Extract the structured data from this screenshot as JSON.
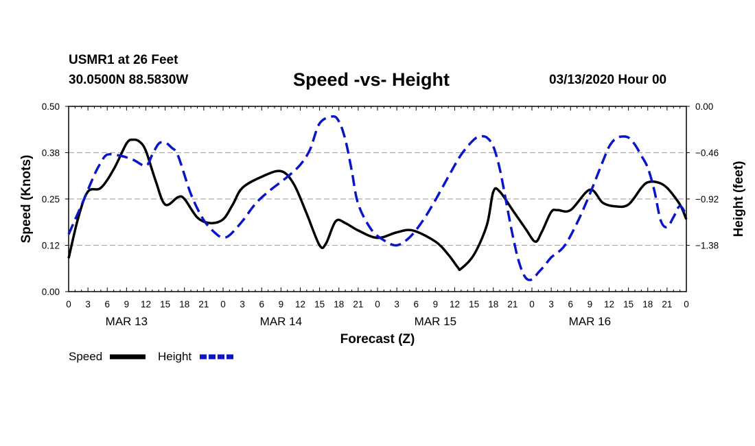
{
  "header": {
    "station": "USMR1 at 26 Feet",
    "coords": "30.0500N 88.5830W",
    "title": "Speed -vs- Height",
    "run": "03/13/2020 Hour 00"
  },
  "colors": {
    "speed": "#000000",
    "height": "#0a14c8",
    "grid": "#aaaaaa"
  },
  "chart_data": {
    "type": "line",
    "title": "Speed -vs- Height",
    "xlabel": "Forecast (Z)",
    "ylabel_left": "Speed (Knots)",
    "ylabel_right": "Height (feet)",
    "x_unit": "forecast hour from 03/13/2020 00Z",
    "xlim": [
      0,
      96
    ],
    "ylim_left": [
      0,
      0.5
    ],
    "ylim_right": [
      -1.84,
      0
    ],
    "left_ticks": [
      {
        "v": 0,
        "label": "0.00"
      },
      {
        "v": 0.125,
        "label": "0.12"
      },
      {
        "v": 0.25,
        "label": "0.25"
      },
      {
        "v": 0.375,
        "label": "0.38"
      },
      {
        "v": 0.5,
        "label": "0.50"
      }
    ],
    "right_ticks": [
      {
        "v": 0,
        "label": "0.00"
      },
      {
        "v": -0.46,
        "label": "−0.46"
      },
      {
        "v": -0.92,
        "label": "−0.92"
      },
      {
        "v": -1.38,
        "label": "−1.38"
      }
    ],
    "x_ticks": [
      {
        "h": 0,
        "label": "0"
      },
      {
        "h": 3,
        "label": "3"
      },
      {
        "h": 6,
        "label": "6"
      },
      {
        "h": 9,
        "label": "9"
      },
      {
        "h": 12,
        "label": "12"
      },
      {
        "h": 15,
        "label": "15"
      },
      {
        "h": 18,
        "label": "18"
      },
      {
        "h": 21,
        "label": "21"
      },
      {
        "h": 24,
        "label": "0"
      },
      {
        "h": 27,
        "label": "3"
      },
      {
        "h": 30,
        "label": "6"
      },
      {
        "h": 33,
        "label": "9"
      },
      {
        "h": 36,
        "label": "12"
      },
      {
        "h": 39,
        "label": "15"
      },
      {
        "h": 42,
        "label": "18"
      },
      {
        "h": 45,
        "label": "21"
      },
      {
        "h": 48,
        "label": "0"
      },
      {
        "h": 51,
        "label": "3"
      },
      {
        "h": 54,
        "label": "6"
      },
      {
        "h": 57,
        "label": "9"
      },
      {
        "h": 60,
        "label": "12"
      },
      {
        "h": 63,
        "label": "15"
      },
      {
        "h": 66,
        "label": "18"
      },
      {
        "h": 69,
        "label": "21"
      },
      {
        "h": 72,
        "label": "0"
      },
      {
        "h": 75,
        "label": "3"
      },
      {
        "h": 78,
        "label": "6"
      },
      {
        "h": 81,
        "label": "9"
      },
      {
        "h": 84,
        "label": "12"
      },
      {
        "h": 87,
        "label": "15"
      },
      {
        "h": 90,
        "label": "18"
      },
      {
        "h": 93,
        "label": "21"
      },
      {
        "h": 96,
        "label": "0"
      }
    ],
    "day_labels": [
      {
        "h": 9,
        "label": "MAR 13"
      },
      {
        "h": 33,
        "label": "MAR 14"
      },
      {
        "h": 57,
        "label": "MAR 15"
      },
      {
        "h": 81,
        "label": "MAR 16"
      }
    ],
    "series": [
      {
        "name": "Speed",
        "axis": "left",
        "style": "solid",
        "points": [
          [
            0,
            0.09
          ],
          [
            1.5,
            0.2
          ],
          [
            3,
            0.27
          ],
          [
            5,
            0.28
          ],
          [
            7,
            0.33
          ],
          [
            9,
            0.4
          ],
          [
            10,
            0.41
          ],
          [
            11,
            0.405
          ],
          [
            12,
            0.38
          ],
          [
            13.5,
            0.3
          ],
          [
            15,
            0.235
          ],
          [
            17,
            0.255
          ],
          [
            18,
            0.25
          ],
          [
            20,
            0.2
          ],
          [
            22,
            0.185
          ],
          [
            24,
            0.195
          ],
          [
            25.5,
            0.235
          ],
          [
            27,
            0.28
          ],
          [
            30,
            0.31
          ],
          [
            33,
            0.325
          ],
          [
            35,
            0.29
          ],
          [
            37,
            0.21
          ],
          [
            39,
            0.125
          ],
          [
            40,
            0.13
          ],
          [
            41.5,
            0.19
          ],
          [
            43,
            0.185
          ],
          [
            45,
            0.165
          ],
          [
            48,
            0.145
          ],
          [
            51,
            0.16
          ],
          [
            53.5,
            0.165
          ],
          [
            57,
            0.135
          ],
          [
            59,
            0.1
          ],
          [
            60.5,
            0.065
          ],
          [
            61,
            0.062
          ],
          [
            63,
            0.1
          ],
          [
            65,
            0.18
          ],
          [
            66,
            0.27
          ],
          [
            67,
            0.27
          ],
          [
            69,
            0.22
          ],
          [
            71,
            0.17
          ],
          [
            72.5,
            0.135
          ],
          [
            73.5,
            0.16
          ],
          [
            75,
            0.215
          ],
          [
            76,
            0.22
          ],
          [
            78,
            0.22
          ],
          [
            81,
            0.275
          ],
          [
            83,
            0.24
          ],
          [
            85,
            0.23
          ],
          [
            87,
            0.235
          ],
          [
            89,
            0.28
          ],
          [
            90,
            0.295
          ],
          [
            91.5,
            0.295
          ],
          [
            93,
            0.28
          ],
          [
            95,
            0.235
          ],
          [
            96,
            0.195
          ]
        ]
      },
      {
        "name": "Height",
        "axis": "right",
        "style": "dashed",
        "points": [
          [
            0,
            -1.27
          ],
          [
            2,
            -0.98
          ],
          [
            4,
            -0.68
          ],
          [
            5,
            -0.56
          ],
          [
            6,
            -0.48
          ],
          [
            8,
            -0.49
          ],
          [
            10,
            -0.53
          ],
          [
            12,
            -0.59
          ],
          [
            13,
            -0.48
          ],
          [
            14,
            -0.37
          ],
          [
            15,
            -0.36
          ],
          [
            16,
            -0.41
          ],
          [
            17,
            -0.49
          ],
          [
            19,
            -0.87
          ],
          [
            21,
            -1.13
          ],
          [
            23,
            -1.27
          ],
          [
            24,
            -1.3
          ],
          [
            25,
            -1.28
          ],
          [
            27,
            -1.14
          ],
          [
            29,
            -0.97
          ],
          [
            31,
            -0.85
          ],
          [
            34,
            -0.7
          ],
          [
            36,
            -0.58
          ],
          [
            37.5,
            -0.43
          ],
          [
            39,
            -0.17
          ],
          [
            41,
            -0.1
          ],
          [
            42,
            -0.15
          ],
          [
            43,
            -0.33
          ],
          [
            44,
            -0.64
          ],
          [
            45,
            -0.97
          ],
          [
            47,
            -1.22
          ],
          [
            49,
            -1.33
          ],
          [
            51,
            -1.38
          ],
          [
            53,
            -1.3
          ],
          [
            55,
            -1.14
          ],
          [
            57,
            -0.93
          ],
          [
            59,
            -0.7
          ],
          [
            61,
            -0.48
          ],
          [
            63,
            -0.33
          ],
          [
            64,
            -0.3
          ],
          [
            65,
            -0.31
          ],
          [
            66,
            -0.4
          ],
          [
            67,
            -0.62
          ],
          [
            68,
            -0.95
          ],
          [
            69,
            -1.28
          ],
          [
            70,
            -1.55
          ],
          [
            71,
            -1.7
          ],
          [
            72,
            -1.72
          ],
          [
            73,
            -1.65
          ],
          [
            74,
            -1.58
          ],
          [
            75,
            -1.5
          ],
          [
            77,
            -1.39
          ],
          [
            79,
            -1.16
          ],
          [
            81,
            -0.87
          ],
          [
            83,
            -0.55
          ],
          [
            84,
            -0.4
          ],
          [
            85,
            -0.32
          ],
          [
            86,
            -0.3
          ],
          [
            87,
            -0.31
          ],
          [
            88,
            -0.38
          ],
          [
            89,
            -0.49
          ],
          [
            90,
            -0.61
          ],
          [
            91,
            -0.83
          ],
          [
            92,
            -1.13
          ],
          [
            93,
            -1.2
          ],
          [
            94,
            -1.1
          ],
          [
            95,
            -0.99
          ],
          [
            96,
            -1.08
          ]
        ]
      }
    ],
    "legend": [
      {
        "label": "Speed",
        "style": "solid",
        "color": "#000000"
      },
      {
        "label": "Height",
        "style": "dashed",
        "color": "#0a14c8"
      }
    ],
    "legend_position": "bottom-left",
    "grid": true
  }
}
